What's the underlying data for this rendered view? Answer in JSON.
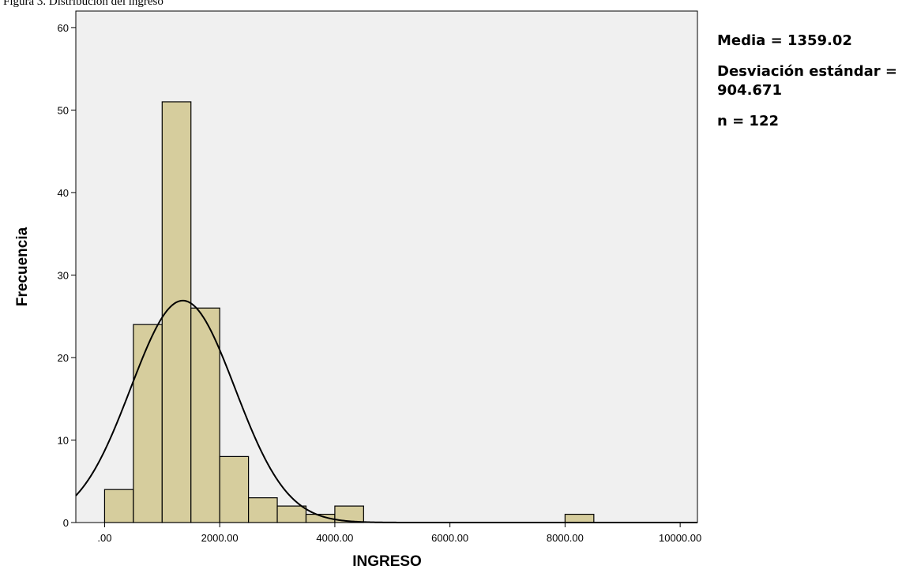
{
  "caption": "Figura 3. Distribución del ingreso",
  "stats": {
    "mean": "Media = 1359.02",
    "std": "Desviación estándar = 904.671",
    "n": "n = 122"
  },
  "colors": {
    "bar_fill": "#d6cd9d",
    "plot_bg": "#f0f0f0",
    "bar_stroke": "#000000",
    "curve": "#000000"
  },
  "chart_data": {
    "type": "bar",
    "title": "",
    "xlabel": "INGRESO",
    "ylabel": "Frecuencia",
    "xlim": [
      -500,
      10300
    ],
    "ylim": [
      0,
      62
    ],
    "x_ticks": [
      0,
      2000,
      4000,
      6000,
      8000,
      10000
    ],
    "x_tick_labels": [
      ".00",
      "2000.00",
      "4000.00",
      "6000.00",
      "8000.00",
      "10000.00"
    ],
    "y_ticks": [
      0,
      10,
      20,
      30,
      40,
      50,
      60
    ],
    "y_tick_labels": [
      "0",
      "10",
      "20",
      "30",
      "40",
      "50",
      "60"
    ],
    "bin_width": 500,
    "bins": [
      {
        "start": 0,
        "end": 500,
        "count": 4
      },
      {
        "start": 500,
        "end": 1000,
        "count": 24
      },
      {
        "start": 1000,
        "end": 1500,
        "count": 51
      },
      {
        "start": 1500,
        "end": 2000,
        "count": 26
      },
      {
        "start": 2000,
        "end": 2500,
        "count": 8
      },
      {
        "start": 2500,
        "end": 3000,
        "count": 3
      },
      {
        "start": 3000,
        "end": 3500,
        "count": 2
      },
      {
        "start": 3500,
        "end": 4000,
        "count": 1
      },
      {
        "start": 4000,
        "end": 4500,
        "count": 2
      },
      {
        "start": 8000,
        "end": 8500,
        "count": 1
      }
    ],
    "normal_curve": {
      "mean": 1359.02,
      "std": 904.671,
      "n": 122
    },
    "grid": false,
    "legend": "none"
  }
}
